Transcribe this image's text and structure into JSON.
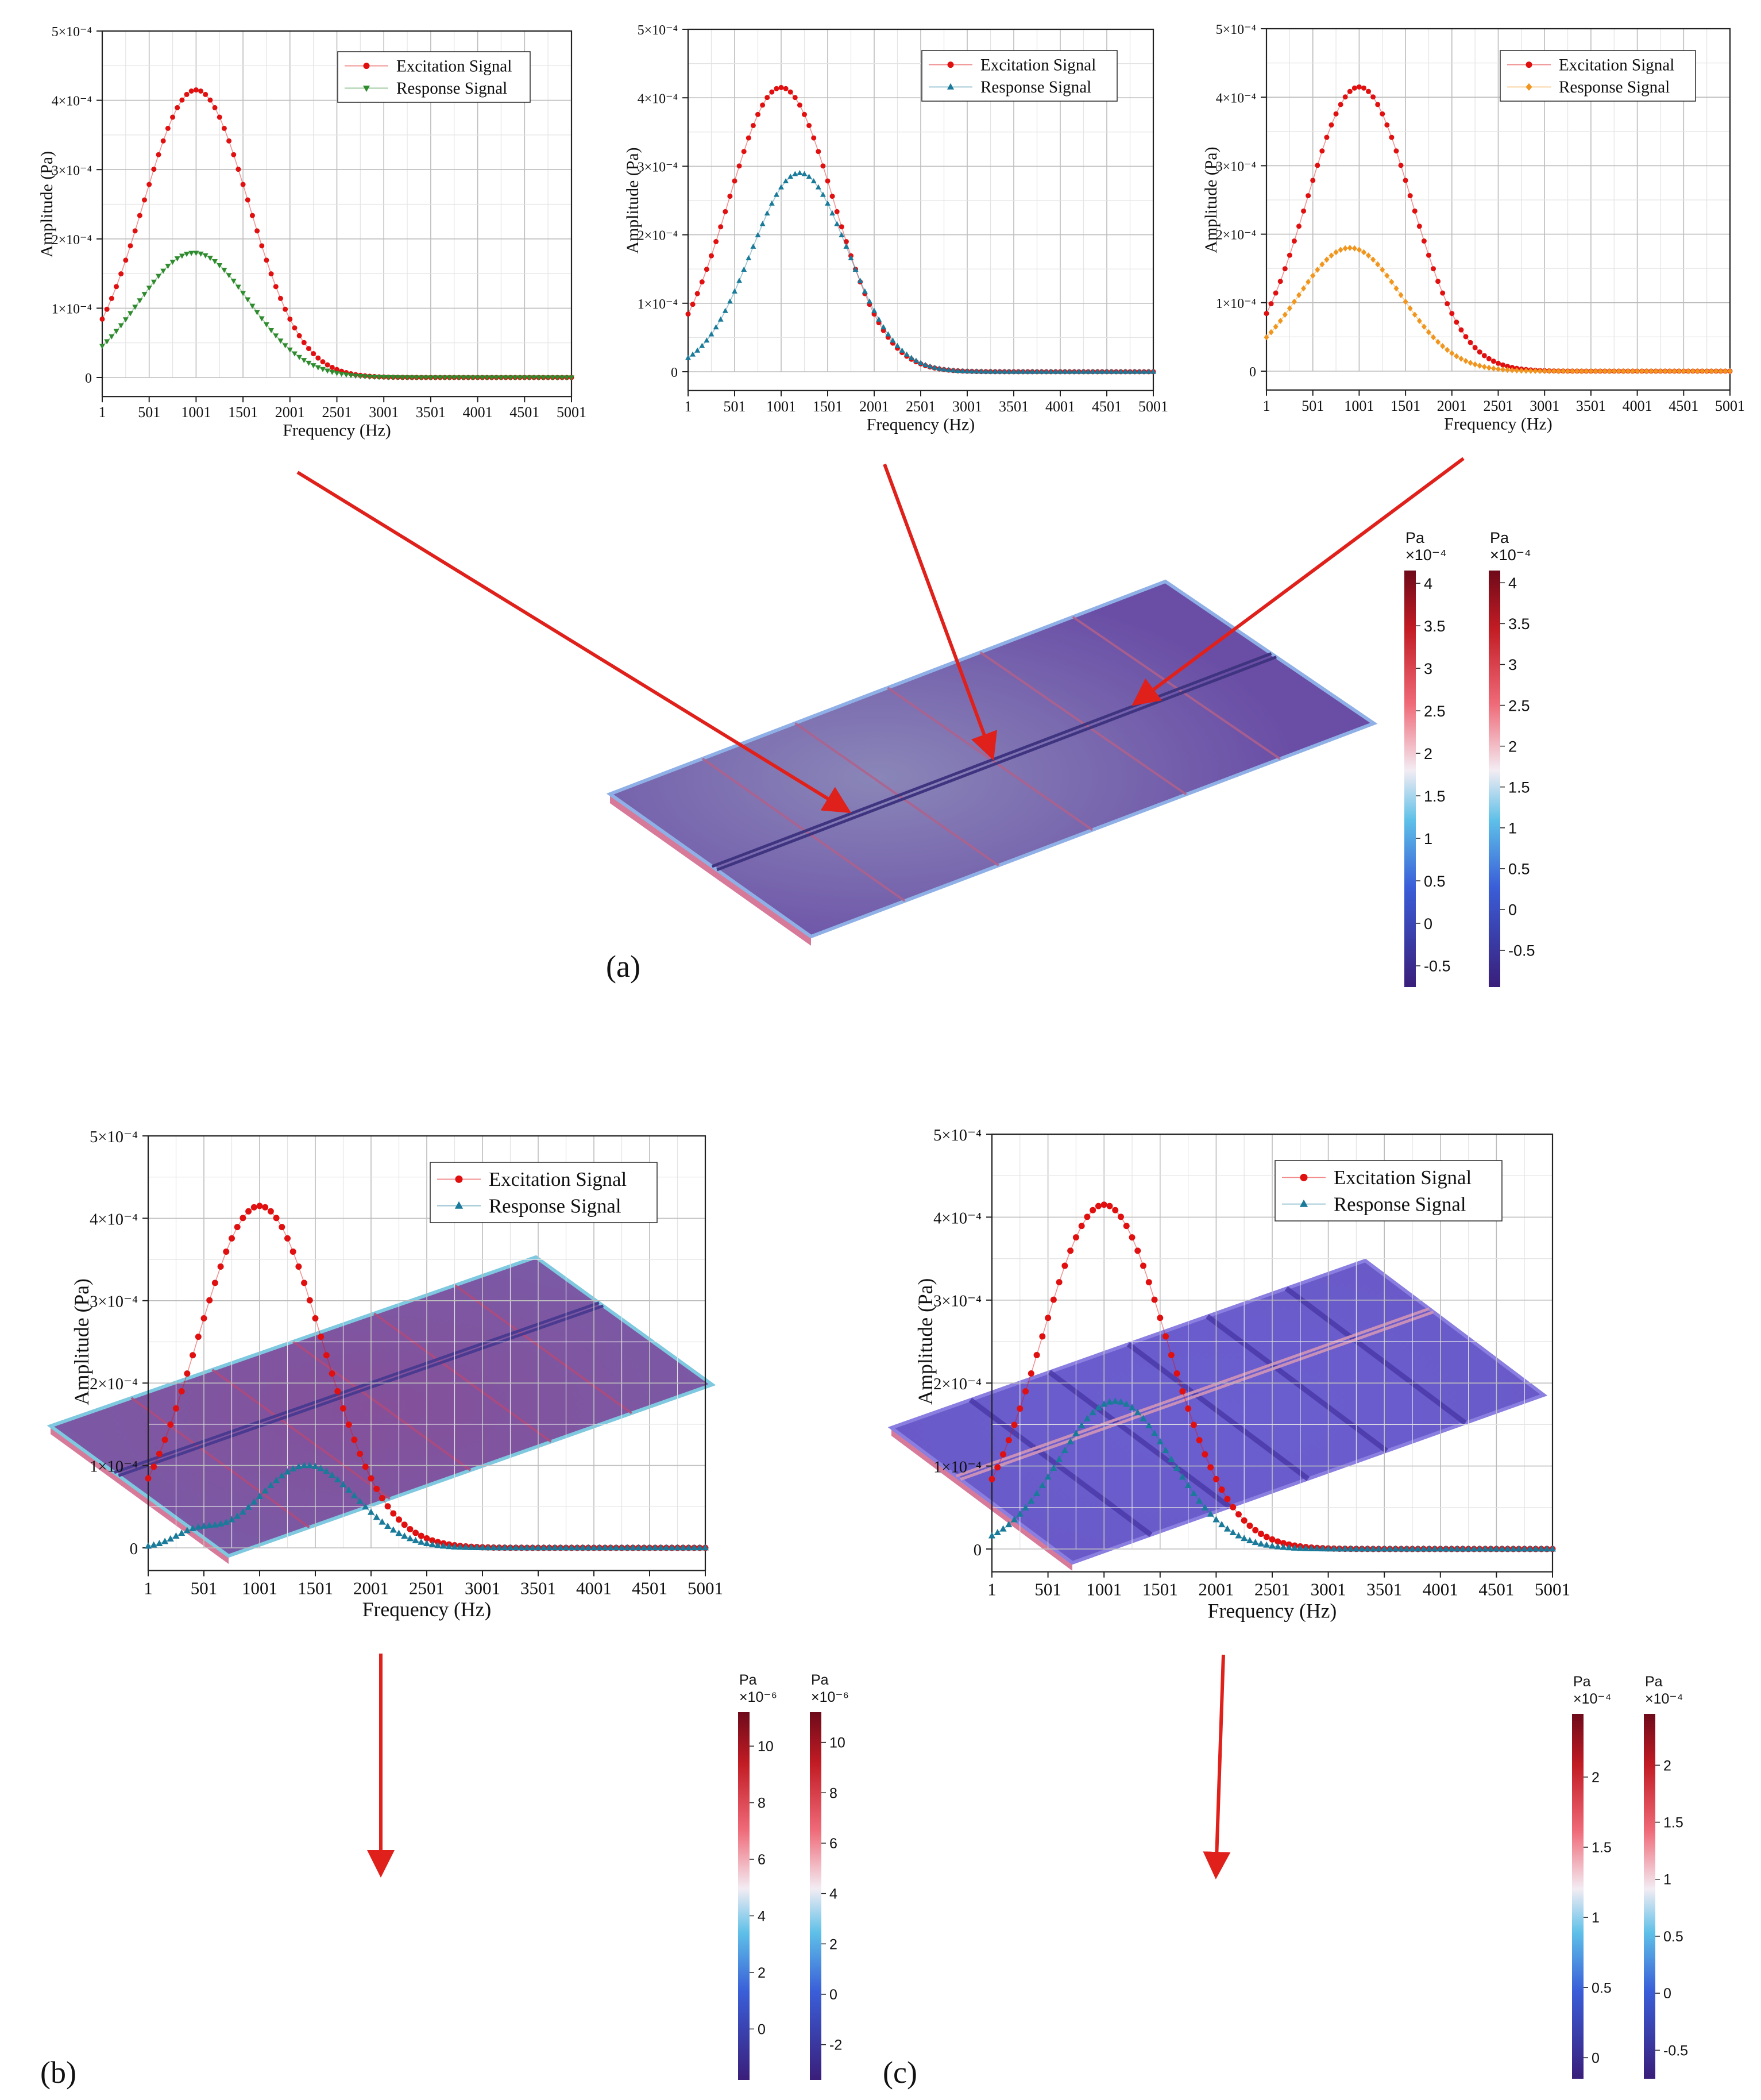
{
  "panel_labels": [
    "(a)",
    "(b)",
    "(c)"
  ],
  "legend": {
    "excitation": "Excitation Signal",
    "response": "Response Signal"
  },
  "axes": {
    "xlabel": "Frequency (Hz)",
    "ylabel": "Amplitude (Pa)",
    "xticks": [
      "1",
      "501",
      "1001",
      "1501",
      "2001",
      "2501",
      "3001",
      "3501",
      "4001",
      "4501",
      "5001"
    ],
    "yticks": [
      "0",
      "1×10⁻⁴",
      "2×10⁻⁴",
      "3×10⁻⁴",
      "4×10⁻⁴",
      "5×10⁻⁴"
    ]
  },
  "colors": {
    "excitation": "#e01010",
    "response_a1": "#2e8b2e",
    "response_a2": "#1a7a9a",
    "response_a3": "#f0961e",
    "response_b": "#1a7a9a",
    "response_c": "#1a7a9a",
    "arrow": "#e0201a",
    "plate": "#6a54b8"
  },
  "chart_data": [
    {
      "id": "a1",
      "type": "scatter",
      "xlabel": "Frequency (Hz)",
      "ylabel": "Amplitude (Pa)",
      "xlim": [
        1,
        5001
      ],
      "ylim": [
        0,
        0.0005
      ],
      "grid": true,
      "legend_position": "top-right",
      "series": [
        {
          "name": "Excitation Signal",
          "marker": "circle",
          "gaussian": {
            "amplitude": 0.000415,
            "center": 1001,
            "sigma": 560
          },
          "x_range": [
            1,
            5001
          ],
          "points": 101
        },
        {
          "name": "Response Signal",
          "marker": "triangle-down",
          "gaussian": {
            "amplitude": 0.00018,
            "center": 980,
            "sigma": 590
          },
          "x_range": [
            1,
            5001
          ],
          "points": 101
        }
      ]
    },
    {
      "id": "a2",
      "type": "scatter",
      "xlabel": "Frequency (Hz)",
      "ylabel": "Amplitude (Pa)",
      "xlim": [
        1,
        5001
      ],
      "ylim": [
        0,
        0.0005
      ],
      "grid": true,
      "legend_position": "top-right",
      "series": [
        {
          "name": "Excitation Signal",
          "marker": "circle",
          "gaussian": {
            "amplitude": 0.000415,
            "center": 1001,
            "sigma": 560
          },
          "x_range": [
            1,
            5001
          ],
          "points": 101
        },
        {
          "name": "Response Signal",
          "marker": "triangle-up",
          "gaussian": {
            "amplitude": 0.00029,
            "center": 1201,
            "sigma": 520
          },
          "x_range": [
            1,
            5001
          ],
          "points": 101
        }
      ]
    },
    {
      "id": "a3",
      "type": "scatter",
      "xlabel": "Frequency (Hz)",
      "ylabel": "Amplitude (Pa)",
      "xlim": [
        1,
        5001
      ],
      "ylim": [
        0,
        0.0005
      ],
      "grid": true,
      "legend_position": "top-right",
      "series": [
        {
          "name": "Excitation Signal",
          "marker": "circle",
          "gaussian": {
            "amplitude": 0.000415,
            "center": 1001,
            "sigma": 560
          },
          "x_range": [
            1,
            5001
          ],
          "points": 101
        },
        {
          "name": "Response Signal",
          "marker": "diamond",
          "gaussian": {
            "amplitude": 0.00018,
            "center": 901,
            "sigma": 560
          },
          "x_range": [
            1,
            5001
          ],
          "points": 101
        }
      ]
    },
    {
      "id": "b",
      "type": "scatter",
      "xlabel": "Frequency (Hz)",
      "ylabel": "Amplitude (Pa)",
      "xlim": [
        1,
        5001
      ],
      "ylim": [
        0,
        0.0005
      ],
      "grid": true,
      "legend_position": "top-right",
      "series": [
        {
          "name": "Excitation Signal",
          "marker": "circle",
          "gaussian": {
            "amplitude": 0.000415,
            "center": 1001,
            "sigma": 560
          },
          "x_range": [
            1,
            5001
          ],
          "points": 101
        },
        {
          "name": "Response Signal",
          "marker": "triangle-up",
          "gaussians": [
            {
              "amplitude": 1.7e-05,
              "center": 420,
              "sigma": 190
            },
            {
              "amplitude": 0.0001,
              "center": 1430,
              "sigma": 440
            }
          ],
          "x_range": [
            1,
            5001
          ],
          "points": 101
        }
      ]
    },
    {
      "id": "c",
      "type": "scatter",
      "xlabel": "Frequency (Hz)",
      "ylabel": "Amplitude (Pa)",
      "xlim": [
        1,
        5001
      ],
      "ylim": [
        0,
        0.0005
      ],
      "grid": true,
      "legend_position": "top-right",
      "series": [
        {
          "name": "Excitation Signal",
          "marker": "circle",
          "gaussian": {
            "amplitude": 0.000415,
            "center": 1001,
            "sigma": 560
          },
          "x_range": [
            1,
            5001
          ],
          "points": 101
        },
        {
          "name": "Response Signal",
          "marker": "triangle-up",
          "gaussian": {
            "amplitude": 0.000178,
            "center": 1101,
            "sigma": 500
          },
          "x_range": [
            1,
            5001
          ],
          "points": 101
        }
      ]
    }
  ],
  "colorbars": [
    {
      "id": "a-left",
      "unit": "Pa",
      "exponent": "×10⁻⁴",
      "min": -0.75,
      "max": 4.15,
      "ticks": [
        "4",
        "3.5",
        "3",
        "2.5",
        "2",
        "1.5",
        "1",
        "0.5",
        "0",
        "-0.5"
      ]
    },
    {
      "id": "a-right",
      "unit": "Pa",
      "exponent": "×10⁻⁴",
      "min": -0.95,
      "max": 4.15,
      "ticks": [
        "4",
        "3.5",
        "3",
        "2.5",
        "2",
        "1.5",
        "1",
        "0.5",
        "0",
        "-0.5"
      ]
    },
    {
      "id": "b-left",
      "unit": "Pa",
      "exponent": "×10⁻⁶",
      "min": -1.8,
      "max": 11.2,
      "ticks": [
        "10",
        "8",
        "6",
        "4",
        "2",
        "0"
      ]
    },
    {
      "id": "b-right",
      "unit": "Pa",
      "exponent": "×10⁻⁶",
      "min": -3.4,
      "max": 11.2,
      "ticks": [
        "10",
        "8",
        "6",
        "4",
        "2",
        "0",
        "-2"
      ]
    },
    {
      "id": "c-left",
      "unit": "Pa",
      "exponent": "×10⁻⁴",
      "min": -0.15,
      "max": 2.45,
      "ticks": [
        "2",
        "1.5",
        "1",
        "0.5",
        "0"
      ]
    },
    {
      "id": "c-right",
      "unit": "Pa",
      "exponent": "×10⁻⁴",
      "min": -0.75,
      "max": 2.45,
      "ticks": [
        "2",
        "1.5",
        "1",
        "0.5",
        "0",
        "-0.5"
      ]
    }
  ]
}
